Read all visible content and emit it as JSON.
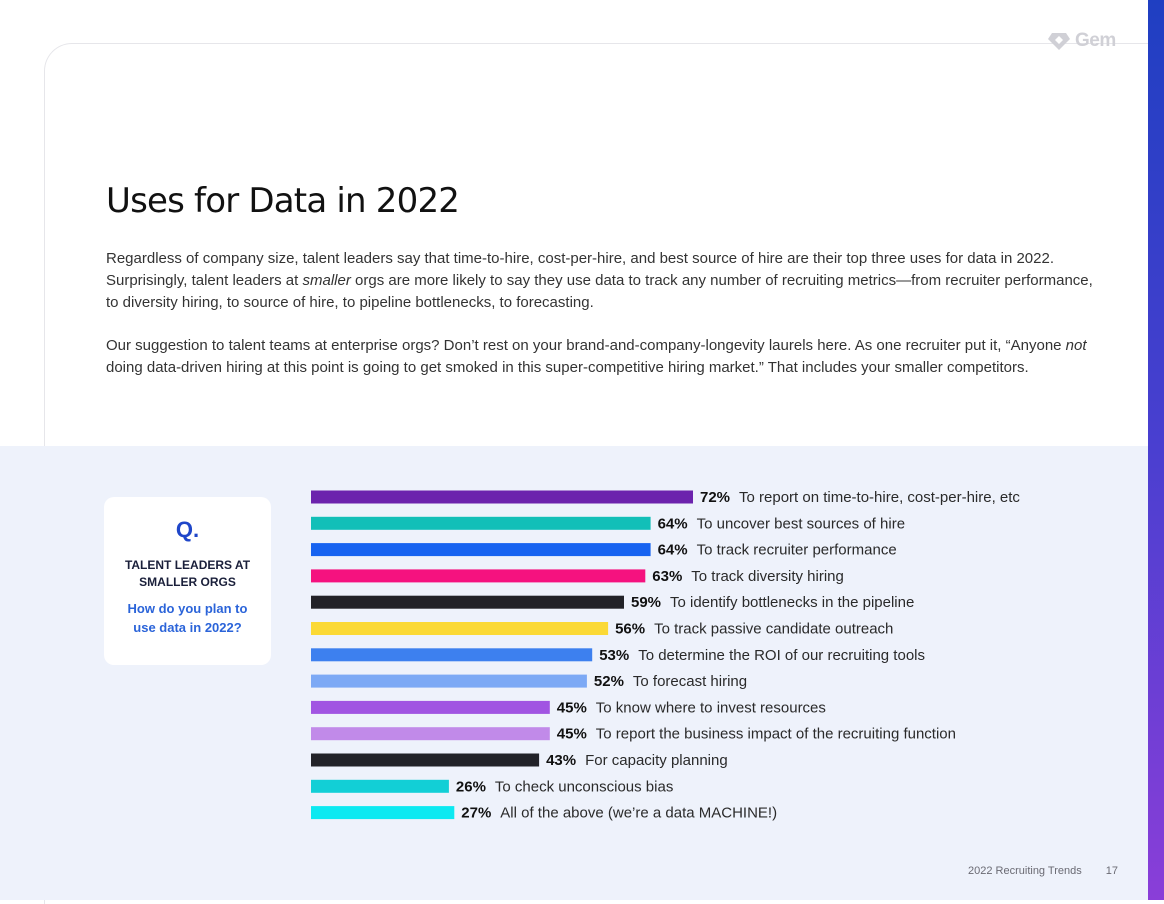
{
  "brand": {
    "logo_text": "Gem",
    "logo_icon": "gem-icon"
  },
  "title": "Uses for Data in 2022",
  "paragraphs": [
    {
      "pre": "Regardless of company size, talent leaders say that time-to-hire, cost-per-hire, and best source of hire are their top three uses for data in 2022. Surprisingly, talent leaders at ",
      "em": "smaller",
      "post": " orgs are more likely to say they use data to track any number of recruiting metrics—from recruiter performance, to diversity hiring, to source of hire, to pipeline bottlenecks, to forecasting."
    },
    {
      "pre": "Our suggestion to talent teams at enterprise orgs? Don’t rest on your brand-and-company-longevity laurels here. As one recruiter put it, “Anyone ",
      "em": "not",
      "post": " doing data-driven hiring at this point is going to get smoked in this super-competitive hiring market.” That includes your smaller competitors."
    }
  ],
  "question_card": {
    "mark": "Q.",
    "audience_line1": "TALENT LEADERS AT",
    "audience_line2": "SMALLER ORGS",
    "question_line1": "How do you plan to",
    "question_line2": "use data in 2022?"
  },
  "chart_data": {
    "type": "bar",
    "orientation": "horizontal",
    "value_suffix": "%",
    "categories": [
      "To report on time-to-hire, cost-per-hire, etc",
      "To uncover best sources of hire",
      "To track recruiter performance",
      "To track diversity hiring",
      "To identify bottlenecks in the pipeline",
      "To track passive candidate outreach",
      "To determine the ROI of our recruiting tools",
      "To forecast hiring",
      "To know where to invest resources",
      "To report the business impact of the recruiting function",
      "For capacity planning",
      "To check unconscious bias",
      "All of the above (we’re a data MACHINE!)"
    ],
    "values": [
      72,
      64,
      64,
      63,
      59,
      56,
      53,
      52,
      45,
      45,
      43,
      26,
      27
    ],
    "colors": [
      "#6c23ad",
      "#12bfb8",
      "#1763f0",
      "#f5127f",
      "#222228",
      "#fbd935",
      "#3d80ef",
      "#7ca9f5",
      "#a155e2",
      "#c18ae9",
      "#222228",
      "#12cfd6",
      "#0ce9f1"
    ]
  },
  "footer": {
    "report_name": "2022 Recruiting Trends",
    "page_number": "17"
  }
}
